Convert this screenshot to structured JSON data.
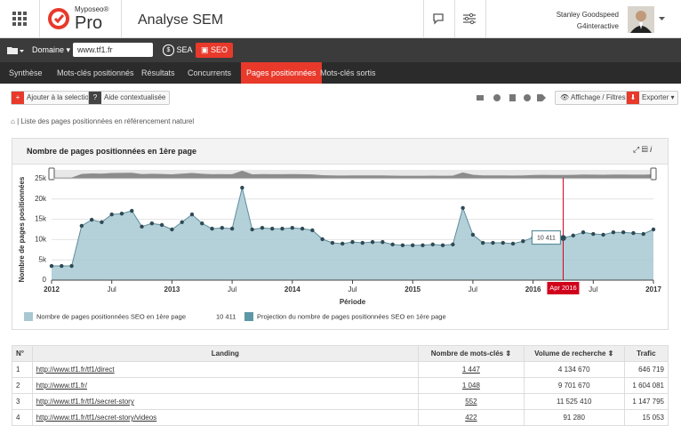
{
  "header": {
    "brand_small": "Myposeo®",
    "brand_big": "Pro",
    "title": "Analyse SEM",
    "user": "Stanley Goodspeed",
    "company": "G4interactive"
  },
  "toolbar": {
    "domain": "Domaine",
    "url": "www.tf1.fr",
    "sea": "SEA",
    "seo": "SEO"
  },
  "tabs": {
    "items": [
      "Synthèse",
      "Mots-clés positionnés",
      "Résultats",
      "Concurrents",
      "Pages positionnées",
      "Mots-clés sortis"
    ],
    "active": 4
  },
  "actions": {
    "add": "Ajouter à la selection",
    "help": "Aide contextualisée",
    "display": "Affichage / Filtres",
    "export": "Exporter"
  },
  "breadcrumb": "| Liste des pages positionnées en référencement naturel",
  "chart_data": {
    "type": "area",
    "title": "Nombre de pages positionnées en 1ère page",
    "ylabel": "Nombre de pages positionnées",
    "xlabel": "Période",
    "x": [
      "2012-01",
      "2012-02",
      "2012-03",
      "2012-04",
      "2012-05",
      "2012-06",
      "2012-07",
      "2012-08",
      "2012-09",
      "2012-10",
      "2012-11",
      "2012-12",
      "2013-01",
      "2013-02",
      "2013-03",
      "2013-04",
      "2013-05",
      "2013-06",
      "2013-07",
      "2013-08",
      "2013-09",
      "2013-10",
      "2013-11",
      "2013-12",
      "2014-01",
      "2014-02",
      "2014-03",
      "2014-04",
      "2014-05",
      "2014-06",
      "2014-07",
      "2014-08",
      "2014-09",
      "2014-10",
      "2014-11",
      "2014-12",
      "2015-01",
      "2015-02",
      "2015-03",
      "2015-04",
      "2015-05",
      "2015-06",
      "2015-07",
      "2015-08",
      "2015-09",
      "2015-10",
      "2015-11",
      "2015-12",
      "2016-01",
      "2016-02",
      "2016-03",
      "2016-04",
      "2016-05",
      "2016-06",
      "2016-07",
      "2016-08",
      "2016-09",
      "2016-10",
      "2016-11",
      "2016-12",
      "2017-01"
    ],
    "series": [
      {
        "name": "Nombre de pages positionnées SEO en 1ère page",
        "color": "#a7c8d2",
        "line_color": "#5d8e9c",
        "point_color": "#2f4a55",
        "values": [
          3500,
          3500,
          3500,
          13400,
          14900,
          14300,
          16200,
          16400,
          17100,
          13200,
          14000,
          13600,
          12500,
          14300,
          16200,
          14000,
          12700,
          12900,
          12700,
          22800,
          12500,
          12900,
          12700,
          12700,
          12900,
          12700,
          12300,
          10100,
          9200,
          9000,
          9400,
          9200,
          9400,
          9400,
          8800,
          8600,
          8600,
          8600,
          8800,
          8600,
          8800,
          17800,
          11200,
          9200,
          9200,
          9200,
          9000,
          9600,
          10500,
          11000,
          10500,
          10411,
          11000,
          11800,
          11400,
          11200,
          11800,
          11800,
          11600,
          11400,
          12500
        ]
      }
    ],
    "projection": {
      "name": "Projection du nombre de pages positionnées SEO en 1ère page",
      "color": "#5e97a6"
    },
    "highlight": {
      "x": "2016-04",
      "x_label": "Apr 2016",
      "value": 10411,
      "label": "10 411",
      "color": "#d0021b"
    },
    "ylim": [
      0,
      25000
    ],
    "yticks": [
      0,
      {
        "value": 5000,
        "label": "5k"
      },
      {
        "value": 10000,
        "label": "10k"
      },
      {
        "value": 15000,
        "label": "15k"
      },
      {
        "value": 20000,
        "label": "20k"
      },
      {
        "value": 25000,
        "label": "25k"
      }
    ],
    "xlim": [
      "2012-01",
      "2017-01"
    ],
    "xticks": [
      {
        "value": "2012-01",
        "label": "2012"
      },
      {
        "value": "2012-07",
        "label": "Jul"
      },
      {
        "value": "2013-01",
        "label": "2013"
      },
      {
        "value": "2013-07",
        "label": "Jul"
      },
      {
        "value": "2014-01",
        "label": "2014"
      },
      {
        "value": "2014-07",
        "label": "Jul"
      },
      {
        "value": "2015-01",
        "label": "2015"
      },
      {
        "value": "2015-07",
        "label": "Jul"
      },
      {
        "value": "2016-01",
        "label": "2016"
      },
      {
        "value": "2016-07",
        "label": "Jul"
      },
      {
        "value": "2017-01",
        "label": "2017"
      }
    ],
    "grid": true
  },
  "table": {
    "columns": [
      "N°",
      "Landing",
      "Nombre de mots-clés",
      "Volume de recherche",
      "Trafic"
    ],
    "rows": [
      [
        "1",
        "http://www.tf1.fr/tf1/direct",
        "1 447",
        "4 134 670",
        "646 719"
      ],
      [
        "2",
        "http://www.tf1.fr/",
        "1 048",
        "9 701 670",
        "1 604 081"
      ],
      [
        "3",
        "http://www.tf1.fr/tf1/secret-story",
        "552",
        "11 525 410",
        "1 147 795"
      ],
      [
        "4",
        "http://www.tf1.fr/tf1/secret-story/videos",
        "422",
        "91 280",
        "15 053"
      ]
    ]
  }
}
